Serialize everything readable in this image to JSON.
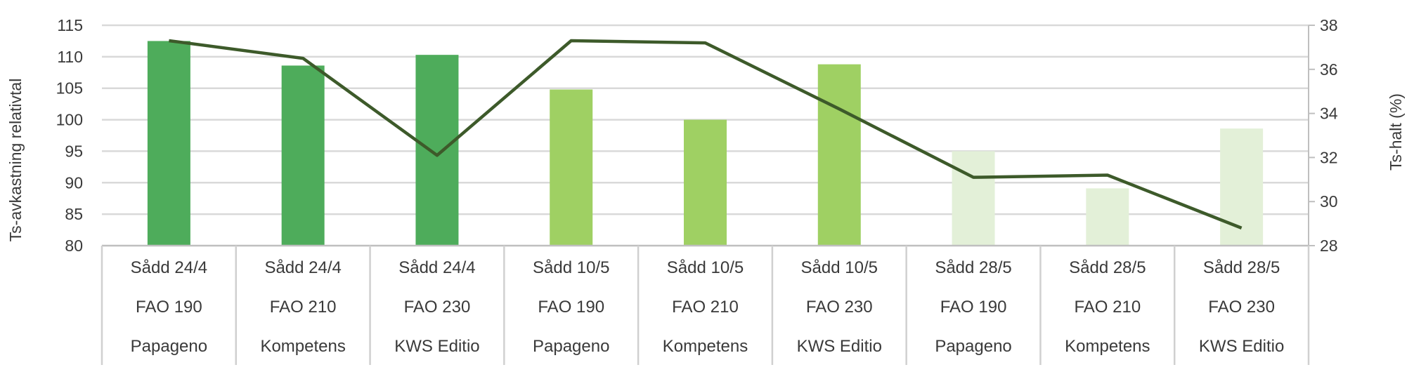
{
  "chart_data": {
    "type": "bar",
    "categories": [
      [
        "Sådd 24/4",
        "FAO 190",
        "Papageno"
      ],
      [
        "Sådd 24/4",
        "FAO 210",
        "Kompetens"
      ],
      [
        "Sådd 24/4",
        "FAO 230",
        "KWS Editio"
      ],
      [
        "Sådd 10/5",
        "FAO 190",
        "Papageno"
      ],
      [
        "Sådd 10/5",
        "FAO 210",
        "Kompetens"
      ],
      [
        "Sådd 10/5",
        "FAO 230",
        "KWS Editio"
      ],
      [
        "Sådd 28/5",
        "FAO 190",
        "Papageno"
      ],
      [
        "Sådd 28/5",
        "FAO 210",
        "Kompetens"
      ],
      [
        "Sådd 28/5",
        "FAO 230",
        "KWS Editio"
      ]
    ],
    "series": [
      {
        "type": "bar",
        "axis": "left",
        "values": [
          112.5,
          108.6,
          110.3,
          104.8,
          100.0,
          108.8,
          95.0,
          89.1,
          98.6
        ],
        "colors": [
          "#4eac5b",
          "#4eac5b",
          "#4eac5b",
          "#9fd063",
          "#9fd063",
          "#9fd063",
          "#e3f0d8",
          "#e3f0d8",
          "#e3f0d8"
        ]
      },
      {
        "type": "line",
        "axis": "right",
        "values": [
          37.3,
          36.5,
          32.1,
          37.3,
          37.2,
          34.2,
          31.1,
          31.2,
          28.8
        ],
        "color": "#3d5a2a"
      }
    ],
    "ylabel": "Ts-avkastning relativtal",
    "y2label": "Ts-halt (%)",
    "ylim": [
      80,
      115
    ],
    "yticks": [
      80,
      85,
      90,
      95,
      100,
      105,
      110,
      115
    ],
    "y2lim": [
      28,
      38
    ],
    "y2ticks": [
      28,
      30,
      32,
      34,
      36,
      38
    ],
    "grid": true,
    "legend": "none"
  }
}
